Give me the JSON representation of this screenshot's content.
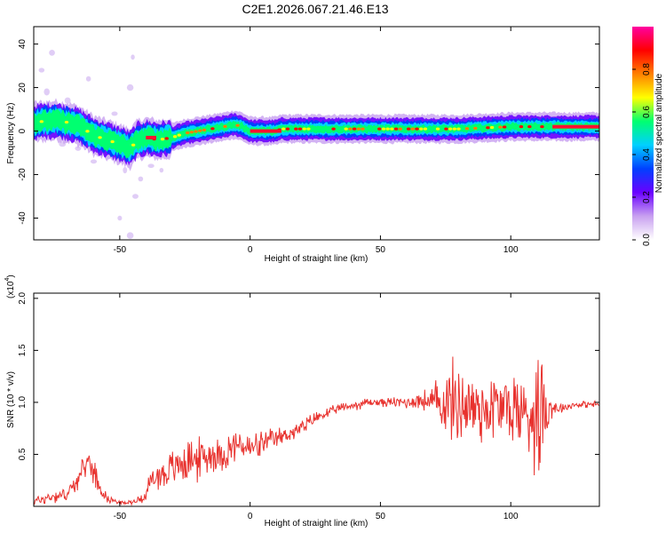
{
  "title": "C2E1.2026.067.21.46.E13",
  "chart_data": [
    {
      "type": "heatmap",
      "xlabel": "Height of straight line (km)",
      "ylabel": "Frequency (Hz)",
      "xlim": [
        -83,
        134
      ],
      "ylim": [
        -50,
        48
      ],
      "xticks": [
        "-50",
        "0",
        "50",
        "100"
      ],
      "yticks": [
        "-40",
        "-20",
        "0",
        "20",
        "40"
      ],
      "ridge": {
        "x": [
          -83,
          -75,
          -70,
          -65,
          -60,
          -55,
          -50,
          -46,
          -43,
          -40,
          -35,
          -30,
          -25,
          -20,
          -15,
          -10,
          -6,
          -3,
          0,
          5,
          10,
          12,
          20,
          40,
          60,
          80,
          100,
          110,
          116,
          134
        ],
        "freq": [
          4,
          5,
          4,
          2,
          -2,
          -4,
          -6,
          -8,
          -4,
          -3,
          -4,
          -3,
          -1,
          0,
          1,
          2,
          3,
          2,
          0,
          0,
          0,
          1,
          1,
          1,
          1,
          1,
          2,
          2,
          2,
          2
        ]
      },
      "colorbar": {
        "label": "Normalized spectral amplitude",
        "range": [
          0,
          1
        ],
        "ticks": [
          "0.0",
          "0.2",
          "0.4",
          "0.6",
          "0.8"
        ],
        "colors": [
          "#ffffff",
          "#c8a0f0",
          "#6a00ff",
          "#0040ff",
          "#00d0ff",
          "#00ff70",
          "#ffff00",
          "#ff8000",
          "#ff0000",
          "#ff00a0"
        ]
      }
    },
    {
      "type": "line",
      "xlabel": "Height of straight line (km)",
      "ylabel": "SNR (10 * v/v)",
      "yscale_label": "(x10",
      "yscale_exp": "4",
      "yscale_close": ")",
      "xlim": [
        -83,
        134
      ],
      "ylim": [
        0,
        2.05
      ],
      "xticks": [
        "-50",
        "0",
        "50",
        "100"
      ],
      "yticks": [
        "0.5",
        "1.0",
        "1.5",
        "2.0"
      ],
      "series": [
        {
          "name": "SNR",
          "color": "#e8322e",
          "x": [
            -83,
            -75,
            -70,
            -65,
            -62,
            -60,
            -58,
            -55,
            -52,
            -48,
            -44,
            -42,
            -40,
            -38,
            -35,
            -30,
            -25,
            -20,
            -15,
            -10,
            -5,
            0,
            5,
            10,
            15,
            20,
            25,
            30,
            35,
            40,
            45,
            50,
            55,
            60,
            65,
            70,
            75,
            80,
            85,
            90,
            95,
            100,
            105,
            110,
            112,
            115,
            120,
            125,
            134
          ],
          "values": [
            0.05,
            0.1,
            0.12,
            0.3,
            0.45,
            0.35,
            0.2,
            0.08,
            0.05,
            0.03,
            0.05,
            0.08,
            0.1,
            0.25,
            0.3,
            0.35,
            0.45,
            0.45,
            0.5,
            0.5,
            0.6,
            0.55,
            0.6,
            0.65,
            0.7,
            0.75,
            0.85,
            0.9,
            0.95,
            0.97,
            1.0,
            1.0,
            1.0,
            1.0,
            1.02,
            1.0,
            1.0,
            1.0,
            0.95,
            0.95,
            0.95,
            0.95,
            0.9,
            0.9,
            1.0,
            0.95,
            0.95,
            0.98,
            0.98
          ],
          "noise": [
            0.06,
            0.08,
            0.08,
            0.12,
            0.15,
            0.15,
            0.1,
            0.05,
            0.03,
            0.02,
            0.03,
            0.05,
            0.08,
            0.18,
            0.2,
            0.22,
            0.28,
            0.25,
            0.22,
            0.2,
            0.2,
            0.18,
            0.15,
            0.12,
            0.1,
            0.1,
            0.08,
            0.06,
            0.05,
            0.06,
            0.06,
            0.05,
            0.06,
            0.08,
            0.1,
            0.2,
            0.45,
            0.5,
            0.5,
            0.45,
            0.45,
            0.45,
            0.5,
            0.7,
            0.9,
            0.15,
            0.05,
            0.04,
            0.04
          ]
        }
      ]
    }
  ]
}
